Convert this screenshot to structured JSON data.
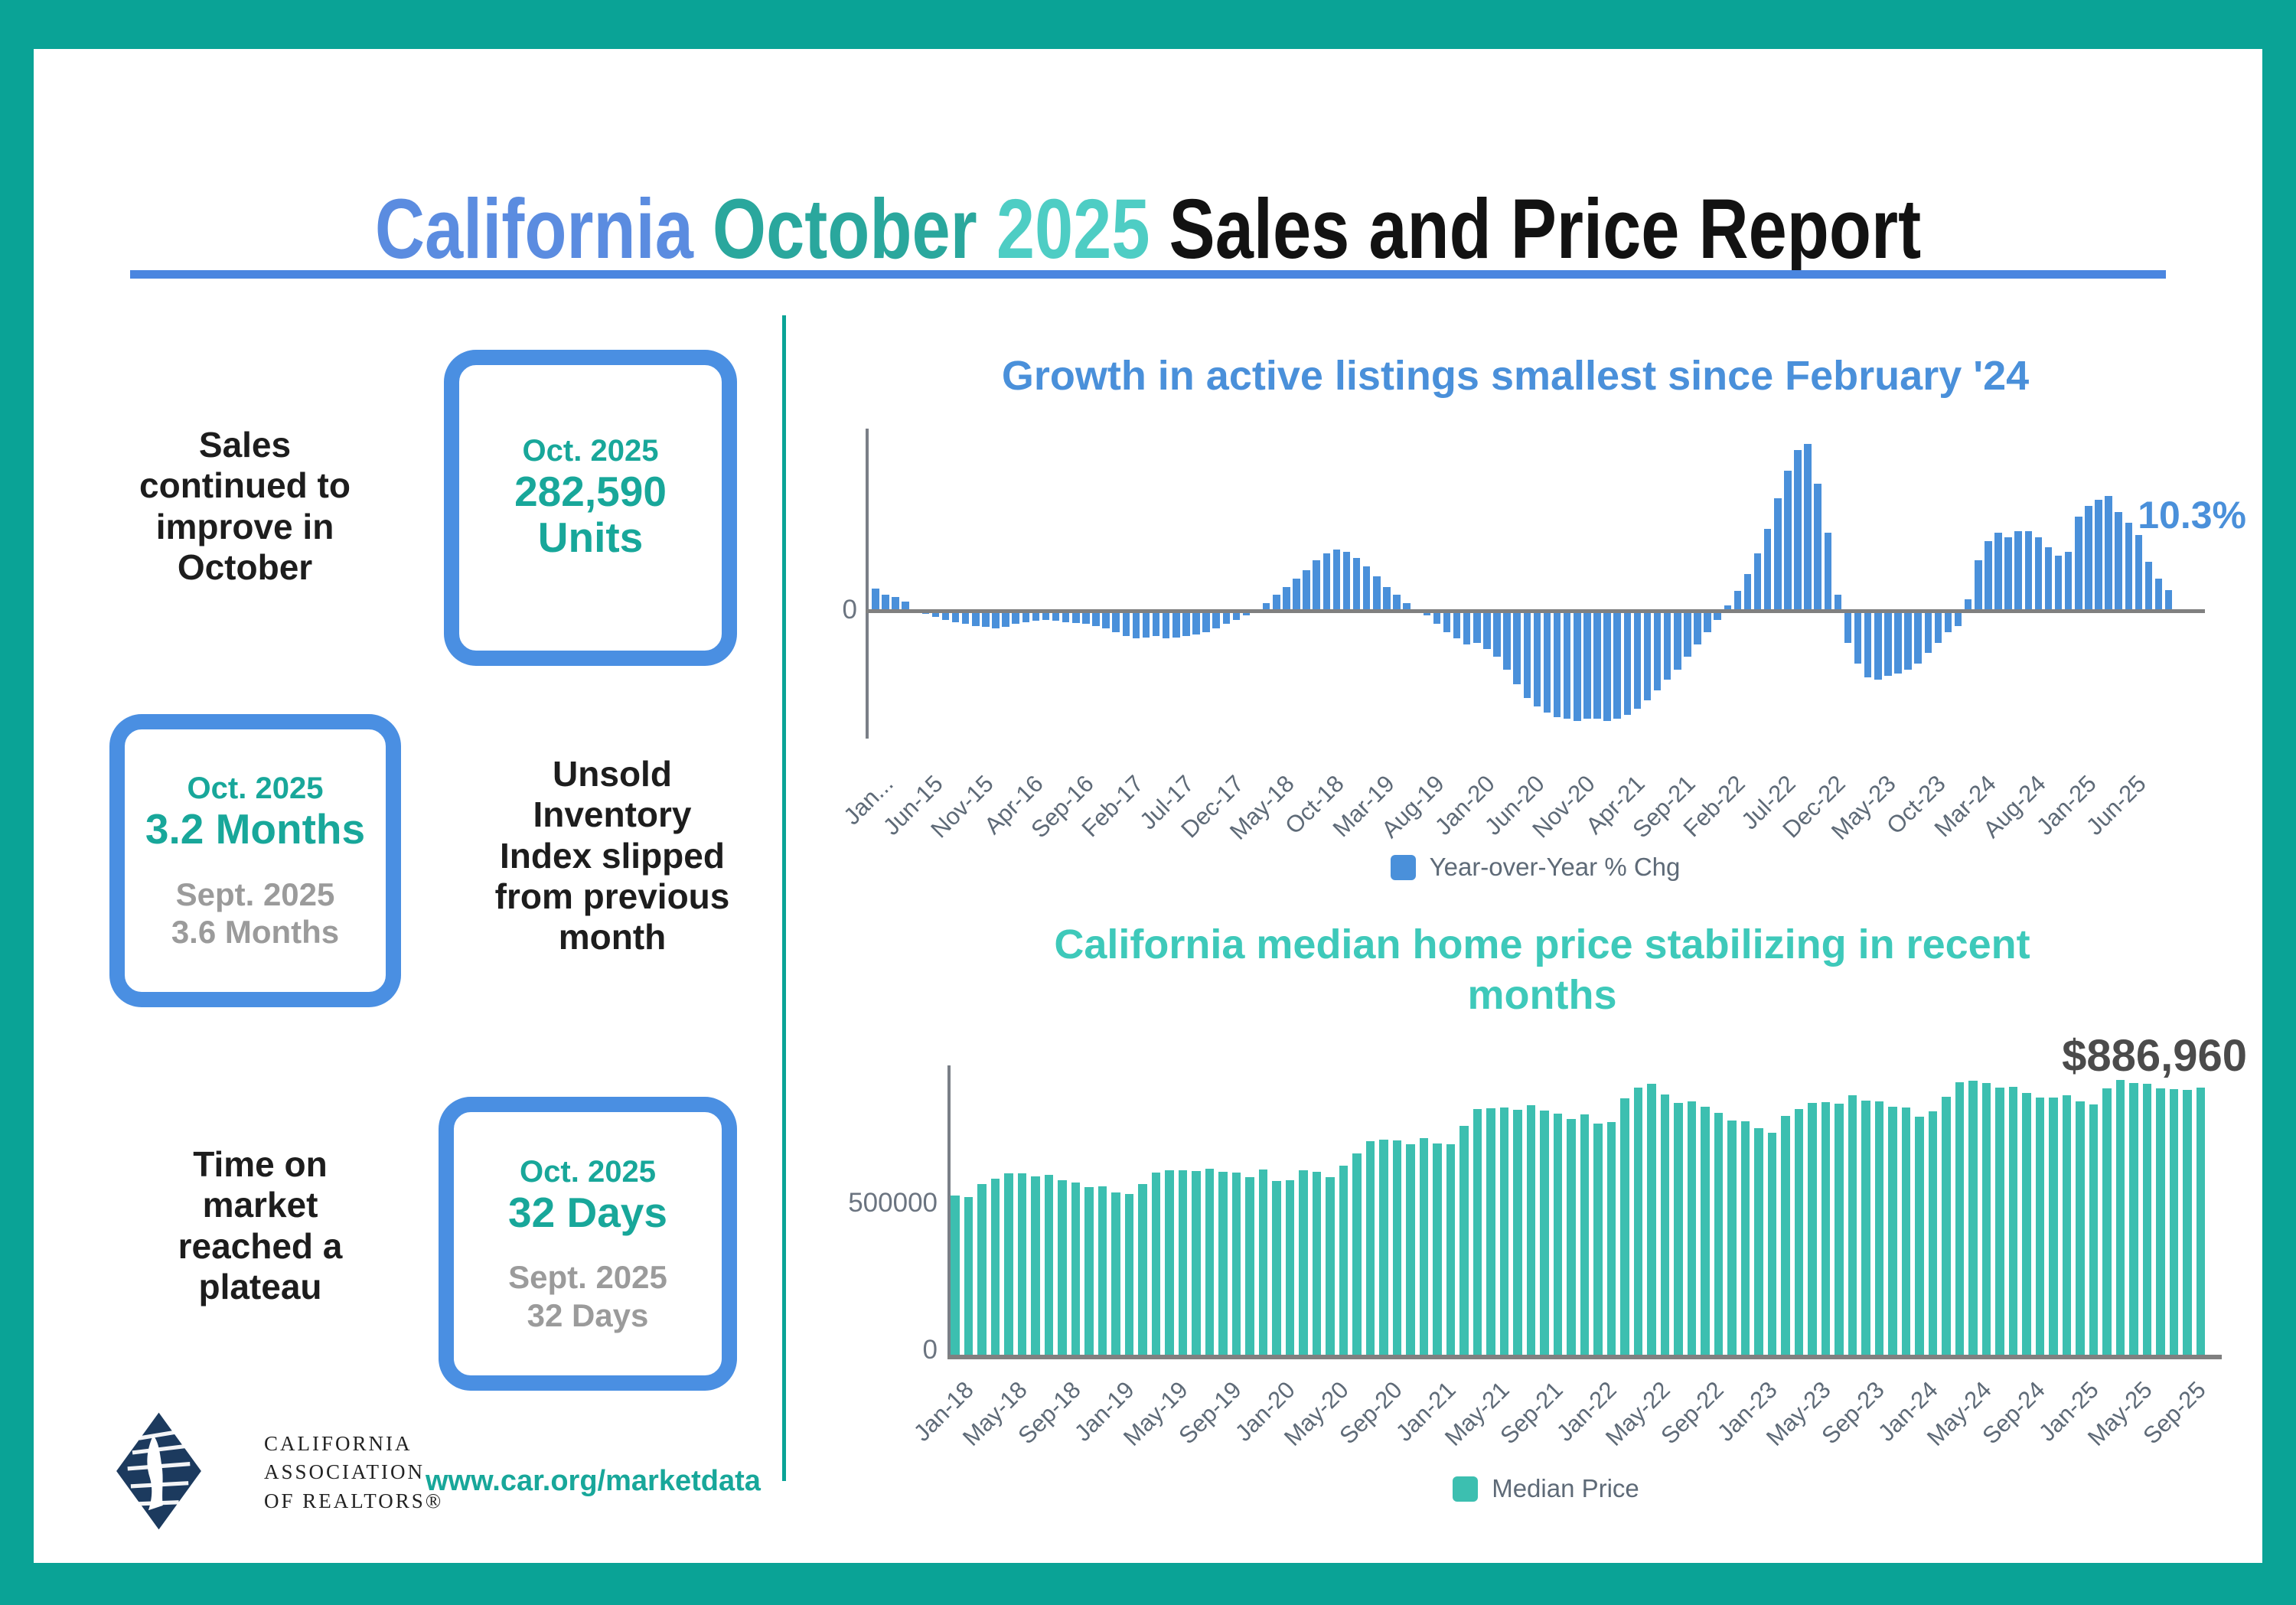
{
  "header": {
    "title": [
      {
        "text": "California ",
        "color": "#5b8ce0"
      },
      {
        "text": "October ",
        "color": "#2aa79d"
      },
      {
        "text": "2025 ",
        "color": "#4ecdc4"
      },
      {
        "text": "Sales and Price Report",
        "color": "#121212"
      }
    ]
  },
  "colors": {
    "frame": "#0aa396",
    "accent_blue": "#4a8fe2",
    "accent_teal": "#18a79a",
    "muted_gray": "#9b9b9b",
    "slate": "#5e6a77",
    "chart1_blue": "#4a90da",
    "chart2_teal": "#3cbfb0"
  },
  "stats": [
    {
      "label": "Sales continued to improve in October",
      "box": {
        "period": "Oct. 2025",
        "value": "282,590",
        "unit": "Units"
      }
    },
    {
      "label": "Unsold Inventory Index slipped from previous month",
      "box": {
        "period": "Oct. 2025",
        "value": "3.2 Months",
        "prev_period": "Sept. 2025",
        "prev_value": "3.6 Months"
      }
    },
    {
      "label": "Time on market reached a plateau",
      "box": {
        "period": "Oct. 2025",
        "value": "32 Days",
        "prev_period": "Sept. 2025",
        "prev_value": "32 Days"
      }
    }
  ],
  "footer": {
    "logo_lines": [
      "CALIFORNIA",
      "ASSOCIATION",
      "OF REALTORS®"
    ],
    "url": "www.car.org/marketdata"
  },
  "chart_data": [
    {
      "type": "bar",
      "title": "Growth in active listings smallest since February '24",
      "legend": "Year-over-Year % Chg",
      "annotation": "10.3%",
      "bar_color": "#4a90da",
      "x_start": "Jan-2015",
      "x_end": "Oct-2025",
      "frequency": "monthly",
      "ylim": [
        -60,
        90
      ],
      "ylabel_ticks": [
        "0"
      ],
      "grid": false,
      "legend_position": "bottom",
      "tick_labels": [
        "Jan...",
        "Jun-15",
        "Nov-15",
        "Apr-16",
        "Sep-16",
        "Feb-17",
        "Jul-17",
        "Dec-17",
        "May-18",
        "Oct-18",
        "Mar-19",
        "Aug-19",
        "Jan-20",
        "Jun-20",
        "Nov-20",
        "Apr-21",
        "Sep-21",
        "Feb-22",
        "Jul-22",
        "Dec-22",
        "May-23",
        "Oct-23",
        "Mar-24",
        "Aug-24",
        "Jan-25",
        "Jun-25"
      ],
      "series": [
        {
          "name": "Year-over-Year % Chg",
          "values": [
            11,
            8,
            7,
            5,
            0.5,
            -1,
            -2.5,
            -4,
            -5,
            -6,
            -7,
            -7.5,
            -8,
            -7.5,
            -6,
            -5,
            -4.5,
            -4,
            -4.5,
            -5,
            -5.5,
            -6,
            -7,
            -8,
            -10,
            -12,
            -13,
            -12.5,
            -12,
            -13,
            -12.5,
            -12,
            -11,
            -10,
            -8,
            -6,
            -4,
            -2,
            1,
            4,
            8,
            12,
            16,
            20,
            25,
            28,
            30,
            29,
            26,
            22,
            17,
            12,
            8,
            4,
            1,
            -2,
            -6,
            -10,
            -13,
            -16,
            -15,
            -18,
            -22,
            -28,
            -35,
            -42,
            -46,
            -49,
            -51,
            -52,
            -53,
            -52,
            -52,
            -53,
            -52,
            -50,
            -47,
            -43,
            -38,
            -33,
            -28,
            -22,
            -16,
            -10,
            -4,
            3,
            10,
            18,
            28,
            40,
            55,
            68,
            78,
            81,
            62,
            38,
            8,
            -15,
            -25,
            -32,
            -33,
            -31,
            -30,
            -28,
            -25,
            -20,
            -15,
            -10,
            -7,
            6,
            25,
            34,
            38,
            36,
            39,
            39,
            36,
            31,
            27,
            29,
            46,
            51,
            54,
            56,
            48,
            43,
            37,
            24,
            16,
            10.3
          ]
        }
      ]
    },
    {
      "type": "bar",
      "title": "California median home price stabilizing in recent months",
      "legend": "Median Price",
      "annotation": "$886,960",
      "bar_color": "#3cbfb0",
      "x_start": "Jan-2018",
      "x_end": "Oct-2025",
      "frequency": "monthly",
      "ylim": [
        0,
        950000
      ],
      "ylabel_ticks": [
        "500000",
        "0"
      ],
      "grid": false,
      "legend_position": "bottom",
      "tick_labels": [
        "Jan-18",
        "May-18",
        "Sep-18",
        "Jan-19",
        "May-19",
        "Sep-19",
        "Jan-20",
        "May-20",
        "Sep-20",
        "Jan-21",
        "May-21",
        "Sep-21",
        "Jan-22",
        "May-22",
        "Sep-22",
        "Jan-23",
        "May-23",
        "Sep-23",
        "Jan-24",
        "May-24",
        "Sep-24",
        "Jan-25",
        "May-25",
        "Sep-25"
      ],
      "series": [
        {
          "name": "Median Price",
          "values": [
            527460,
            522440,
            564830,
            584460,
            600860,
            602760,
            591460,
            596410,
            578850,
            572000,
            554760,
            557600,
            538690,
            534140,
            565880,
            602920,
            611190,
            611420,
            607990,
            617410,
            605680,
            605280,
            589770,
            615090,
            575160,
            579770,
            612440,
            606410,
            588070,
            626170,
            666320,
            706900,
            712430,
            711300,
            699000,
            717930,
            699890,
            699000,
            758990,
            813980,
            818260,
            819630,
            811170,
            827940,
            808890,
            798440,
            782480,
            796570,
            765610,
            771270,
            849080,
            884890,
            898980,
            863790,
            833910,
            839460,
            821680,
            801190,
            777500,
            774580,
            751330,
            735480,
            791490,
            815340,
            836110,
            838260,
            832340,
            859800,
            843340,
            840360,
            822200,
            819740,
            788940,
            806480,
            854490,
            904210,
            908040,
            900720,
            886560,
            888740,
            868150,
            852880,
            852600,
            861020,
            838850,
            829060,
            884350,
            910160,
            900170,
            899560,
            884050,
            880250,
            879000,
            886960
          ]
        }
      ]
    }
  ]
}
